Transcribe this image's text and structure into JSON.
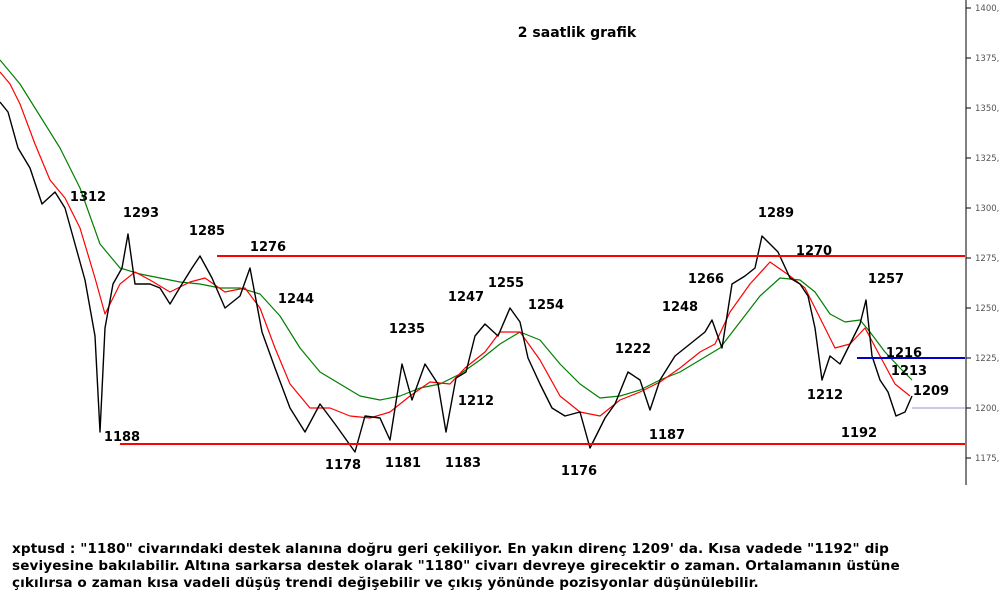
{
  "chart_data": {
    "type": "line",
    "title": "2 saatlik grafik",
    "instrument": "xptusd",
    "ylim": [
      1160,
      1410
    ],
    "y_ticks": [
      1175,
      1200,
      1225,
      1250,
      1275,
      1300,
      1325,
      1350,
      1375,
      1400
    ],
    "y_tick_labels": [
      "1175,",
      "1200,",
      "1225,",
      "1250,",
      "1275,",
      "1300,",
      "1325,",
      "1350,",
      "1375,",
      "1400,"
    ],
    "x_range": [
      0,
      960
    ],
    "grid": false,
    "series": [
      {
        "key": "price",
        "color": "#000000",
        "points": [
          [
            0,
            1353
          ],
          [
            8,
            1348
          ],
          [
            18,
            1330
          ],
          [
            30,
            1320
          ],
          [
            42,
            1302
          ],
          [
            55,
            1308
          ],
          [
            65,
            1300
          ],
          [
            75,
            1282
          ],
          [
            85,
            1264
          ],
          [
            95,
            1236
          ],
          [
            100,
            1188
          ],
          [
            105,
            1240
          ],
          [
            113,
            1262
          ],
          [
            122,
            1270
          ],
          [
            128,
            1287
          ],
          [
            135,
            1262
          ],
          [
            150,
            1262
          ],
          [
            160,
            1260
          ],
          [
            170,
            1252
          ],
          [
            182,
            1262
          ],
          [
            192,
            1270
          ],
          [
            200,
            1276
          ],
          [
            212,
            1265
          ],
          [
            225,
            1250
          ],
          [
            240,
            1256
          ],
          [
            250,
            1270
          ],
          [
            262,
            1238
          ],
          [
            275,
            1220
          ],
          [
            290,
            1200
          ],
          [
            305,
            1188
          ],
          [
            320,
            1202
          ],
          [
            335,
            1192
          ],
          [
            355,
            1178
          ],
          [
            365,
            1196
          ],
          [
            380,
            1195
          ],
          [
            390,
            1184
          ],
          [
            402,
            1222
          ],
          [
            412,
            1204
          ],
          [
            425,
            1222
          ],
          [
            438,
            1212
          ],
          [
            446,
            1188
          ],
          [
            456,
            1215
          ],
          [
            466,
            1218
          ],
          [
            475,
            1236
          ],
          [
            485,
            1242
          ],
          [
            498,
            1236
          ],
          [
            510,
            1250
          ],
          [
            520,
            1243
          ],
          [
            528,
            1225
          ],
          [
            540,
            1212
          ],
          [
            552,
            1200
          ],
          [
            565,
            1196
          ],
          [
            580,
            1198
          ],
          [
            590,
            1180
          ],
          [
            605,
            1195
          ],
          [
            615,
            1202
          ],
          [
            628,
            1218
          ],
          [
            640,
            1214
          ],
          [
            650,
            1199
          ],
          [
            660,
            1214
          ],
          [
            675,
            1226
          ],
          [
            690,
            1232
          ],
          [
            705,
            1238
          ],
          [
            712,
            1244
          ],
          [
            722,
            1230
          ],
          [
            732,
            1262
          ],
          [
            745,
            1266
          ],
          [
            755,
            1270
          ],
          [
            762,
            1286
          ],
          [
            770,
            1282
          ],
          [
            778,
            1278
          ],
          [
            790,
            1265
          ],
          [
            800,
            1262
          ],
          [
            808,
            1256
          ],
          [
            815,
            1240
          ],
          [
            822,
            1214
          ],
          [
            830,
            1226
          ],
          [
            840,
            1222
          ],
          [
            850,
            1232
          ],
          [
            860,
            1242
          ],
          [
            866,
            1254
          ],
          [
            872,
            1226
          ],
          [
            880,
            1214
          ],
          [
            888,
            1208
          ],
          [
            896,
            1196
          ],
          [
            905,
            1198
          ],
          [
            912,
            1206
          ]
        ]
      },
      {
        "key": "ma-short",
        "color": "#ff0000",
        "points": [
          [
            0,
            1368
          ],
          [
            10,
            1362
          ],
          [
            20,
            1352
          ],
          [
            35,
            1332
          ],
          [
            50,
            1314
          ],
          [
            65,
            1305
          ],
          [
            80,
            1290
          ],
          [
            95,
            1265
          ],
          [
            105,
            1247
          ],
          [
            120,
            1262
          ],
          [
            135,
            1268
          ],
          [
            150,
            1264
          ],
          [
            170,
            1258
          ],
          [
            190,
            1263
          ],
          [
            205,
            1265
          ],
          [
            225,
            1258
          ],
          [
            245,
            1260
          ],
          [
            260,
            1250
          ],
          [
            275,
            1230
          ],
          [
            290,
            1212
          ],
          [
            310,
            1200
          ],
          [
            330,
            1200
          ],
          [
            350,
            1196
          ],
          [
            370,
            1195
          ],
          [
            390,
            1198
          ],
          [
            410,
            1206
          ],
          [
            430,
            1213
          ],
          [
            450,
            1212
          ],
          [
            465,
            1220
          ],
          [
            485,
            1228
          ],
          [
            500,
            1238
          ],
          [
            520,
            1238
          ],
          [
            540,
            1224
          ],
          [
            560,
            1206
          ],
          [
            580,
            1198
          ],
          [
            600,
            1196
          ],
          [
            620,
            1204
          ],
          [
            640,
            1208
          ],
          [
            660,
            1213
          ],
          [
            680,
            1220
          ],
          [
            700,
            1228
          ],
          [
            715,
            1232
          ],
          [
            730,
            1248
          ],
          [
            750,
            1262
          ],
          [
            770,
            1273
          ],
          [
            790,
            1266
          ],
          [
            805,
            1260
          ],
          [
            820,
            1245
          ],
          [
            835,
            1230
          ],
          [
            850,
            1232
          ],
          [
            865,
            1240
          ],
          [
            880,
            1226
          ],
          [
            895,
            1212
          ],
          [
            910,
            1206
          ]
        ]
      },
      {
        "key": "ma-long",
        "color": "#008000",
        "points": [
          [
            0,
            1374
          ],
          [
            20,
            1362
          ],
          [
            40,
            1346
          ],
          [
            60,
            1330
          ],
          [
            80,
            1310
          ],
          [
            100,
            1282
          ],
          [
            120,
            1270
          ],
          [
            140,
            1267
          ],
          [
            160,
            1265
          ],
          [
            180,
            1263
          ],
          [
            200,
            1262
          ],
          [
            220,
            1260
          ],
          [
            240,
            1260
          ],
          [
            260,
            1257
          ],
          [
            280,
            1246
          ],
          [
            300,
            1230
          ],
          [
            320,
            1218
          ],
          [
            340,
            1212
          ],
          [
            360,
            1206
          ],
          [
            380,
            1204
          ],
          [
            400,
            1206
          ],
          [
            420,
            1210
          ],
          [
            440,
            1212
          ],
          [
            460,
            1217
          ],
          [
            480,
            1224
          ],
          [
            500,
            1232
          ],
          [
            520,
            1238
          ],
          [
            540,
            1234
          ],
          [
            560,
            1222
          ],
          [
            580,
            1212
          ],
          [
            600,
            1205
          ],
          [
            620,
            1206
          ],
          [
            640,
            1209
          ],
          [
            660,
            1214
          ],
          [
            680,
            1218
          ],
          [
            700,
            1224
          ],
          [
            720,
            1230
          ],
          [
            740,
            1243
          ],
          [
            760,
            1256
          ],
          [
            780,
            1265
          ],
          [
            800,
            1264
          ],
          [
            815,
            1258
          ],
          [
            830,
            1247
          ],
          [
            845,
            1243
          ],
          [
            860,
            1244
          ],
          [
            870,
            1238
          ],
          [
            885,
            1228
          ],
          [
            900,
            1220
          ],
          [
            912,
            1214
          ]
        ]
      }
    ],
    "horizontal_lines": [
      {
        "key": "resistance-1276",
        "y": 1276,
        "x_from": 217,
        "x_to": 965,
        "color": "#ff0000"
      },
      {
        "key": "support-1182",
        "y": 1182,
        "x_from": 120,
        "x_to": 965,
        "color": "#ff0000"
      },
      {
        "key": "level-1225",
        "y": 1225,
        "x_from": 857,
        "x_to": 965,
        "color": "#0000cc"
      },
      {
        "key": "last-price-1200",
        "y": 1200,
        "x_from": 912,
        "x_to": 965,
        "color": "#9090c0"
      }
    ],
    "annotations": [
      {
        "text": "1312",
        "x": 88,
        "y": 1306
      },
      {
        "text": "1293",
        "x": 141,
        "y": 1298
      },
      {
        "text": "1285",
        "x": 207,
        "y": 1289
      },
      {
        "text": "1276",
        "x": 268,
        "y": 1281
      },
      {
        "text": "1244",
        "x": 296,
        "y": 1255
      },
      {
        "text": "1188",
        "x": 122,
        "y": 1186
      },
      {
        "text": "1178",
        "x": 343,
        "y": 1172
      },
      {
        "text": "1181",
        "x": 403,
        "y": 1173
      },
      {
        "text": "1183",
        "x": 463,
        "y": 1173
      },
      {
        "text": "1235",
        "x": 407,
        "y": 1240
      },
      {
        "text": "1212",
        "x": 476,
        "y": 1204
      },
      {
        "text": "1247",
        "x": 466,
        "y": 1256
      },
      {
        "text": "1255",
        "x": 506,
        "y": 1263
      },
      {
        "text": "1254",
        "x": 546,
        "y": 1252
      },
      {
        "text": "1176",
        "x": 579,
        "y": 1169
      },
      {
        "text": "1222",
        "x": 633,
        "y": 1230
      },
      {
        "text": "1187",
        "x": 667,
        "y": 1187
      },
      {
        "text": "1248",
        "x": 680,
        "y": 1251
      },
      {
        "text": "1266",
        "x": 706,
        "y": 1265
      },
      {
        "text": "1289",
        "x": 776,
        "y": 1298
      },
      {
        "text": "1270",
        "x": 814,
        "y": 1279
      },
      {
        "text": "1257",
        "x": 886,
        "y": 1265
      },
      {
        "text": "1212",
        "x": 825,
        "y": 1207
      },
      {
        "text": "1216",
        "x": 904,
        "y": 1228
      },
      {
        "text": "1213",
        "x": 909,
        "y": 1219
      },
      {
        "text": "1209",
        "x": 931,
        "y": 1209
      },
      {
        "text": "1192",
        "x": 859,
        "y": 1188
      }
    ]
  },
  "caption": {
    "line1": "xptusd : \"1180\" civarındaki destek alanına doğru geri çekiliyor. En yakın direnç 1209' da. Kısa vadede \"1192\" dip",
    "line2": "seviyesine bakılabilir. Altına sarkarsa destek olarak \"1180\" civarı devreye girecektir o zaman. Ortalamanın üstüne",
    "line3": "çıkılırsa o zaman kısa vadeli düşüş trendi değişebilir ve çıkış yönünde pozisyonlar düşünülebilir."
  }
}
